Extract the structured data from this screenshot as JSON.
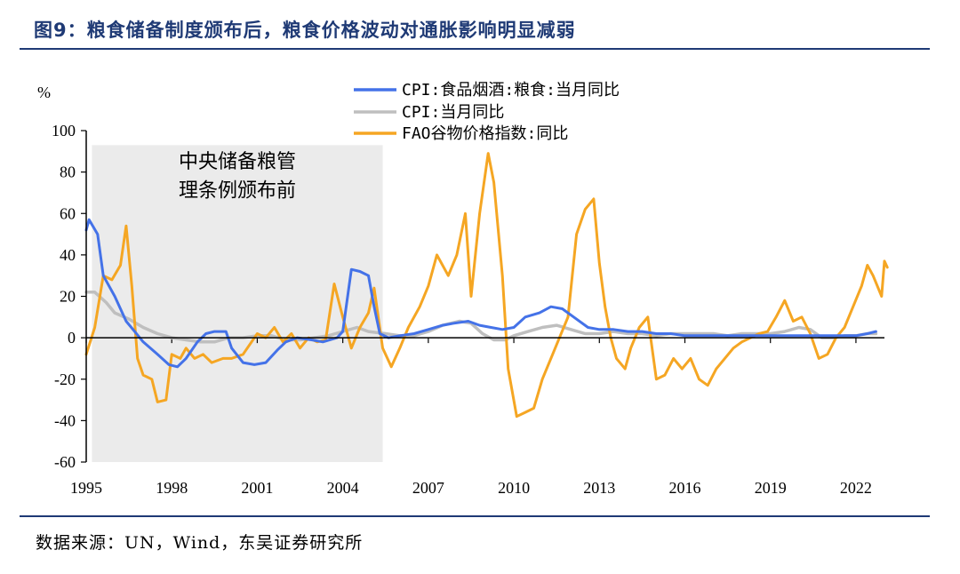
{
  "header": {
    "title": "图9：粮食储备制度颁布后，粮食价格波动对通胀影响明显减弱"
  },
  "footer": {
    "source": "数据来源：UN，Wind，东吴证券研究所"
  },
  "colors": {
    "cpi_grain": "#4472e8",
    "cpi": "#bfbfbf",
    "fao": "#f5a623",
    "shade": "#ebebeb",
    "accent": "#1f3a75"
  },
  "chart_data": {
    "type": "line",
    "ylabel": "%",
    "ylim": [
      -60,
      100
    ],
    "yticks": [
      "100",
      "80",
      "60",
      "40",
      "20",
      "0",
      "-20",
      "-40",
      "-60"
    ],
    "xlim": [
      1995.0,
      2023.0
    ],
    "xticks": [
      {
        "year": 1995,
        "label": "1995"
      },
      {
        "year": 1998,
        "label": "1998"
      },
      {
        "year": 2001,
        "label": "2001"
      },
      {
        "year": 2004,
        "label": "2004"
      },
      {
        "year": 2007,
        "label": "2007"
      },
      {
        "year": 2010,
        "label": "2010"
      },
      {
        "year": 2013,
        "label": "2013"
      },
      {
        "year": 2016,
        "label": "2016"
      },
      {
        "year": 2019,
        "label": "2019"
      },
      {
        "year": 2022,
        "label": "2022"
      }
    ],
    "shaded_region": {
      "x": [
        1995.2,
        2005.4
      ],
      "label_line1": "中央储备粮管",
      "label_line2": "理条例颁布前"
    },
    "series": [
      {
        "name": "CPI:食品烟酒:粮食:当月同比",
        "key": "cpi_grain",
        "points": [
          [
            1995.0,
            52
          ],
          [
            1995.1,
            57
          ],
          [
            1995.4,
            50
          ],
          [
            1995.6,
            30
          ],
          [
            1996.0,
            20
          ],
          [
            1996.4,
            8
          ],
          [
            1996.7,
            3
          ],
          [
            1997.0,
            -2
          ],
          [
            1997.5,
            -8
          ],
          [
            1997.9,
            -13
          ],
          [
            1998.2,
            -14
          ],
          [
            1998.5,
            -10
          ],
          [
            1998.9,
            -2
          ],
          [
            1999.2,
            2
          ],
          [
            1999.5,
            3
          ],
          [
            1999.9,
            3
          ],
          [
            2000.1,
            -5
          ],
          [
            2000.5,
            -12
          ],
          [
            2000.9,
            -13
          ],
          [
            2001.3,
            -12
          ],
          [
            2001.7,
            -6
          ],
          [
            2002.0,
            -2
          ],
          [
            2002.4,
            0
          ],
          [
            2002.9,
            -1
          ],
          [
            2003.3,
            -2
          ],
          [
            2003.8,
            0
          ],
          [
            2004.0,
            3
          ],
          [
            2004.3,
            33
          ],
          [
            2004.6,
            32
          ],
          [
            2004.9,
            30
          ],
          [
            2005.1,
            15
          ],
          [
            2005.3,
            2
          ],
          [
            2005.6,
            0
          ],
          [
            2006.0,
            1
          ],
          [
            2006.5,
            2
          ],
          [
            2007.0,
            4
          ],
          [
            2007.5,
            6
          ],
          [
            2007.9,
            7
          ],
          [
            2008.4,
            8
          ],
          [
            2008.8,
            6
          ],
          [
            2009.2,
            5
          ],
          [
            2009.6,
            4
          ],
          [
            2010.0,
            5
          ],
          [
            2010.4,
            10
          ],
          [
            2010.9,
            12
          ],
          [
            2011.3,
            15
          ],
          [
            2011.7,
            14
          ],
          [
            2012.1,
            10
          ],
          [
            2012.6,
            5
          ],
          [
            2013.0,
            4
          ],
          [
            2013.5,
            4
          ],
          [
            2014.0,
            3
          ],
          [
            2014.5,
            3
          ],
          [
            2015.0,
            2
          ],
          [
            2015.5,
            2
          ],
          [
            2016.0,
            1
          ],
          [
            2016.5,
            1
          ],
          [
            2017.0,
            1
          ],
          [
            2017.5,
            1
          ],
          [
            2018.0,
            1
          ],
          [
            2018.5,
            1
          ],
          [
            2019.0,
            1
          ],
          [
            2019.5,
            1
          ],
          [
            2020.0,
            1
          ],
          [
            2020.5,
            1
          ],
          [
            2021.0,
            1
          ],
          [
            2021.5,
            1
          ],
          [
            2022.0,
            1
          ],
          [
            2022.4,
            2
          ],
          [
            2022.7,
            3
          ]
        ]
      },
      {
        "name": "CPI:当月同比",
        "key": "cpi",
        "points": [
          [
            1995.0,
            22
          ],
          [
            1995.3,
            22
          ],
          [
            1995.7,
            17
          ],
          [
            1996.0,
            12
          ],
          [
            1996.5,
            9
          ],
          [
            1997.0,
            5
          ],
          [
            1997.5,
            2
          ],
          [
            1998.0,
            0
          ],
          [
            1998.5,
            -1
          ],
          [
            1999.0,
            -2
          ],
          [
            1999.5,
            -2
          ],
          [
            2000.0,
            0
          ],
          [
            2000.5,
            0
          ],
          [
            2001.0,
            1
          ],
          [
            2001.5,
            1
          ],
          [
            2002.0,
            -1
          ],
          [
            2002.5,
            -1
          ],
          [
            2003.0,
            0
          ],
          [
            2003.5,
            1
          ],
          [
            2004.0,
            3
          ],
          [
            2004.5,
            5
          ],
          [
            2004.9,
            3
          ],
          [
            2005.5,
            2
          ],
          [
            2006.0,
            1
          ],
          [
            2006.5,
            1
          ],
          [
            2007.0,
            3
          ],
          [
            2007.5,
            6
          ],
          [
            2008.1,
            8
          ],
          [
            2008.5,
            7
          ],
          [
            2008.9,
            2
          ],
          [
            2009.3,
            -1
          ],
          [
            2009.7,
            -1
          ],
          [
            2010.0,
            1
          ],
          [
            2010.5,
            3
          ],
          [
            2011.0,
            5
          ],
          [
            2011.5,
            6
          ],
          [
            2012.0,
            4
          ],
          [
            2012.5,
            2
          ],
          [
            2013.0,
            2
          ],
          [
            2013.5,
            3
          ],
          [
            2014.0,
            2
          ],
          [
            2014.5,
            2
          ],
          [
            2015.0,
            1
          ],
          [
            2015.5,
            2
          ],
          [
            2016.0,
            2
          ],
          [
            2016.5,
            2
          ],
          [
            2017.0,
            2
          ],
          [
            2017.5,
            1
          ],
          [
            2018.0,
            2
          ],
          [
            2018.5,
            2
          ],
          [
            2019.0,
            2
          ],
          [
            2019.5,
            3
          ],
          [
            2020.0,
            5
          ],
          [
            2020.4,
            4
          ],
          [
            2020.8,
            0
          ],
          [
            2021.2,
            0
          ],
          [
            2021.6,
            1
          ],
          [
            2022.0,
            1
          ],
          [
            2022.4,
            2
          ],
          [
            2022.7,
            2
          ]
        ]
      },
      {
        "name": "FAO谷物价格指数:同比",
        "key": "fao",
        "points": [
          [
            1995.0,
            -8
          ],
          [
            1995.3,
            5
          ],
          [
            1995.6,
            30
          ],
          [
            1995.9,
            28
          ],
          [
            1996.2,
            35
          ],
          [
            1996.4,
            54
          ],
          [
            1996.6,
            25
          ],
          [
            1996.8,
            -10
          ],
          [
            1997.0,
            -18
          ],
          [
            1997.3,
            -20
          ],
          [
            1997.5,
            -31
          ],
          [
            1997.8,
            -30
          ],
          [
            1998.0,
            -8
          ],
          [
            1998.3,
            -10
          ],
          [
            1998.5,
            -5
          ],
          [
            1998.8,
            -10
          ],
          [
            1999.1,
            -8
          ],
          [
            1999.4,
            -12
          ],
          [
            1999.8,
            -10
          ],
          [
            2000.1,
            -10
          ],
          [
            2000.5,
            -8
          ],
          [
            2000.8,
            -2
          ],
          [
            2001.0,
            2
          ],
          [
            2001.3,
            0
          ],
          [
            2001.6,
            5
          ],
          [
            2001.9,
            -2
          ],
          [
            2002.2,
            2
          ],
          [
            2002.5,
            -5
          ],
          [
            2002.8,
            0
          ],
          [
            2003.1,
            -2
          ],
          [
            2003.4,
            -1
          ],
          [
            2003.7,
            26
          ],
          [
            2004.0,
            10
          ],
          [
            2004.3,
            -5
          ],
          [
            2004.6,
            5
          ],
          [
            2004.9,
            12
          ],
          [
            2005.1,
            24
          ],
          [
            2005.4,
            -5
          ],
          [
            2005.7,
            -14
          ],
          [
            2006.0,
            -5
          ],
          [
            2006.3,
            5
          ],
          [
            2006.7,
            15
          ],
          [
            2007.0,
            25
          ],
          [
            2007.3,
            40
          ],
          [
            2007.7,
            30
          ],
          [
            2008.0,
            40
          ],
          [
            2008.3,
            60
          ],
          [
            2008.5,
            20
          ],
          [
            2008.8,
            60
          ],
          [
            2009.1,
            89
          ],
          [
            2009.3,
            75
          ],
          [
            2009.6,
            30
          ],
          [
            2009.8,
            -15
          ],
          [
            2010.1,
            -38
          ],
          [
            2010.4,
            -36
          ],
          [
            2010.7,
            -34
          ],
          [
            2011.0,
            -20
          ],
          [
            2011.3,
            -10
          ],
          [
            2011.6,
            0
          ],
          [
            2011.9,
            10
          ],
          [
            2012.2,
            50
          ],
          [
            2012.5,
            62
          ],
          [
            2012.8,
            67
          ],
          [
            2013.0,
            36
          ],
          [
            2013.2,
            15
          ],
          [
            2013.4,
            0
          ],
          [
            2013.6,
            -10
          ],
          [
            2013.9,
            -15
          ],
          [
            2014.1,
            -5
          ],
          [
            2014.4,
            5
          ],
          [
            2014.7,
            10
          ],
          [
            2015.0,
            -20
          ],
          [
            2015.3,
            -18
          ],
          [
            2015.6,
            -10
          ],
          [
            2015.9,
            -15
          ],
          [
            2016.2,
            -10
          ],
          [
            2016.5,
            -20
          ],
          [
            2016.8,
            -23
          ],
          [
            2017.1,
            -15
          ],
          [
            2017.4,
            -10
          ],
          [
            2017.7,
            -5
          ],
          [
            2018.0,
            -2
          ],
          [
            2018.3,
            0
          ],
          [
            2018.6,
            2
          ],
          [
            2018.9,
            3
          ],
          [
            2019.2,
            10
          ],
          [
            2019.5,
            18
          ],
          [
            2019.8,
            8
          ],
          [
            2020.1,
            10
          ],
          [
            2020.4,
            2
          ],
          [
            2020.7,
            -10
          ],
          [
            2021.0,
            -8
          ],
          [
            2021.3,
            0
          ],
          [
            2021.6,
            5
          ],
          [
            2021.9,
            15
          ],
          [
            2022.2,
            25
          ],
          [
            2022.4,
            35
          ],
          [
            2022.6,
            30
          ],
          [
            2022.9,
            20
          ],
          [
            2023.0,
            37
          ],
          [
            2023.1,
            34
          ]
        ]
      }
    ]
  }
}
